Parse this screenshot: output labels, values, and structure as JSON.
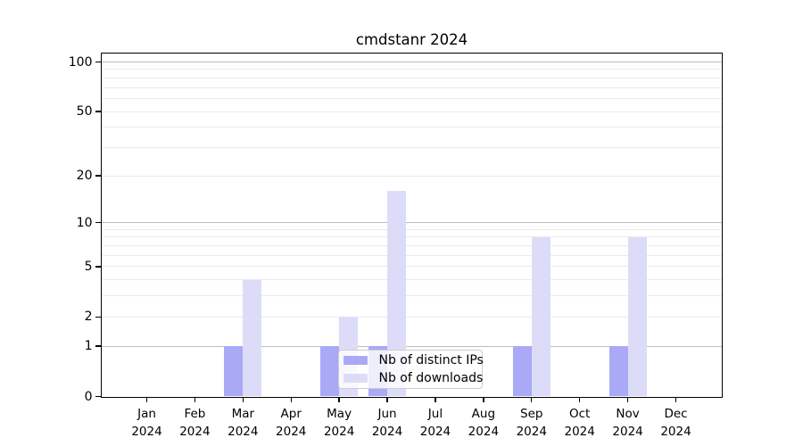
{
  "chart_data": {
    "type": "bar",
    "title": "cmdstanr 2024",
    "categories": [
      "Jan",
      "Feb",
      "Mar",
      "Apr",
      "May",
      "Jun",
      "Jul",
      "Aug",
      "Sep",
      "Oct",
      "Nov",
      "Dec"
    ],
    "year_label": "2024",
    "series": [
      {
        "name": "Nb of distinct IPs",
        "slug": "distinct-ips",
        "color": "#a9a9f6",
        "values": [
          0,
          0,
          1,
          0,
          1,
          1,
          0,
          0,
          1,
          0,
          1,
          0
        ]
      },
      {
        "name": "Nb of downloads",
        "slug": "downloads",
        "color": "#dcdcf9",
        "values": [
          0,
          0,
          4,
          0,
          2,
          16,
          0,
          0,
          8,
          0,
          8,
          0
        ]
      }
    ],
    "yscale": "log1p",
    "ytick_values": [
      0,
      1,
      2,
      5,
      10,
      20,
      50,
      100
    ],
    "ytick_labels": [
      "0",
      "1",
      "2",
      "5",
      "10",
      "20",
      "50",
      "100"
    ],
    "grid_major_values": [
      1,
      10,
      100
    ],
    "grid_minor_values": [
      2,
      3,
      4,
      5,
      6,
      7,
      8,
      9,
      20,
      30,
      40,
      50,
      60,
      70,
      80,
      90
    ],
    "ylim": [
      0,
      100
    ],
    "legend": {
      "position": "lower-center",
      "entries": [
        "Nb of distinct IPs",
        "Nb of downloads"
      ]
    },
    "colors": {
      "bar_distinct_ips": "#a9a9f6",
      "bar_downloads": "#dcdcf9",
      "grid_major": "#bdbdbd",
      "grid_minor": "#eaeaea",
      "axis": "#000000",
      "legend_border": "#cccccc",
      "background": "#ffffff"
    }
  }
}
